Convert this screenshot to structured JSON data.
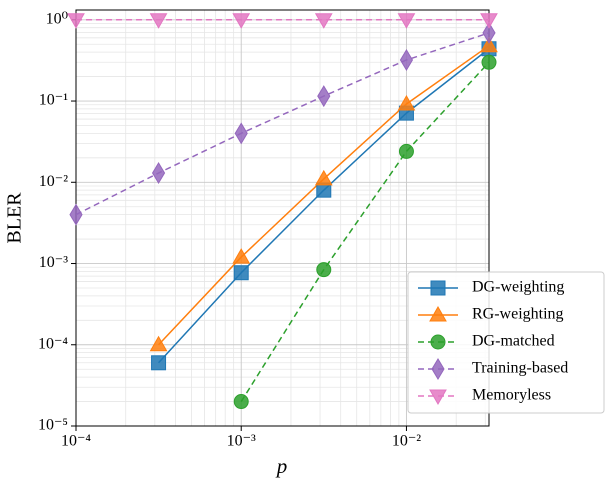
{
  "chart_data": {
    "type": "line",
    "xlabel": "p",
    "ylabel": "BLER",
    "x": [
      0.0001,
      0.000316,
      0.001,
      0.00316,
      0.01,
      0.0316
    ],
    "xscale": "log",
    "yscale": "log",
    "xlim": [
      0.0001,
      0.0316
    ],
    "ylim": [
      1e-05,
      1.32
    ],
    "xticks": [
      {
        "value": 0.0001,
        "label": "10⁻⁴"
      },
      {
        "value": 0.001,
        "label": "10⁻³"
      },
      {
        "value": 0.01,
        "label": "10⁻²"
      }
    ],
    "yticks": [
      {
        "value": 1e-05,
        "label": "10⁻⁵"
      },
      {
        "value": 0.0001,
        "label": "10⁻⁴"
      },
      {
        "value": 0.001,
        "label": "10⁻³"
      },
      {
        "value": 0.01,
        "label": "10⁻²"
      },
      {
        "value": 0.1,
        "label": "10⁻¹"
      },
      {
        "value": 1,
        "label": "10⁰"
      }
    ],
    "grid": true,
    "legend": "lower right",
    "series": [
      {
        "name": "DG-weighting",
        "color": "#1f77b4",
        "linestyle": "solid",
        "marker": "square",
        "values": [
          null,
          6e-05,
          0.00077,
          0.008,
          0.071,
          0.44
        ]
      },
      {
        "name": "RG-weighting",
        "color": "#ff7f0e",
        "linestyle": "solid",
        "marker": "triangle-up",
        "values": [
          null,
          0.0001,
          0.0012,
          0.011,
          0.092,
          0.48
        ]
      },
      {
        "name": "DG-matched",
        "color": "#2ca02c",
        "linestyle": "dashed",
        "marker": "circle",
        "values": [
          null,
          null,
          2e-05,
          0.00084,
          0.024,
          0.3
        ]
      },
      {
        "name": "Training-based",
        "color": "#9467bd",
        "linestyle": "dashed",
        "marker": "diamond",
        "values": [
          0.004,
          0.013,
          0.04,
          0.115,
          0.32,
          0.69
        ]
      },
      {
        "name": "Memoryless",
        "color": "#e377c2",
        "linestyle": "dashed",
        "marker": "triangle-down",
        "values": [
          1,
          1,
          1,
          1,
          1,
          1
        ]
      }
    ]
  }
}
